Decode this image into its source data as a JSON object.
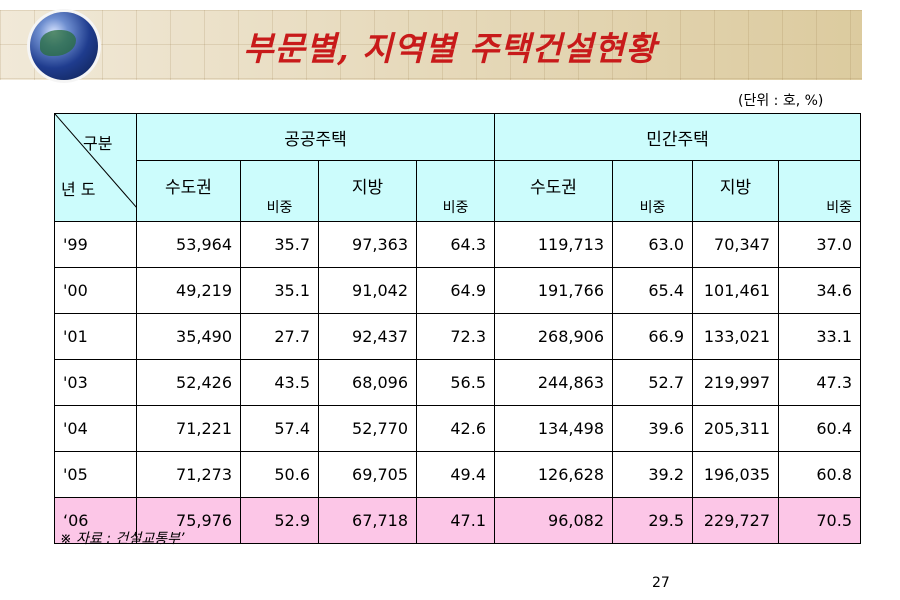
{
  "title": "부문별, 지역별 주택건설현황",
  "unit": "(단위 : 호, %)",
  "table": {
    "corner_top": "구분",
    "corner_bottom": "년 도",
    "group_public": "공공주택",
    "group_private": "민간주택",
    "sub": {
      "capital": "수도권",
      "share": "비중",
      "local": "지방"
    },
    "rows": [
      {
        "year": "'99",
        "pub_cap": "53,964",
        "pub_cap_share": "35.7",
        "pub_loc": "97,363",
        "pub_loc_share": "64.3",
        "pri_cap": "119,713",
        "pri_cap_share": "63.0",
        "pri_loc": "70,347",
        "pri_loc_share": "37.0"
      },
      {
        "year": "'00",
        "pub_cap": "49,219",
        "pub_cap_share": "35.1",
        "pub_loc": "91,042",
        "pub_loc_share": "64.9",
        "pri_cap": "191,766",
        "pri_cap_share": "65.4",
        "pri_loc": "101,461",
        "pri_loc_share": "34.6"
      },
      {
        "year": "'01",
        "pub_cap": "35,490",
        "pub_cap_share": "27.7",
        "pub_loc": "92,437",
        "pub_loc_share": "72.3",
        "pri_cap": "268,906",
        "pri_cap_share": "66.9",
        "pri_loc": "133,021",
        "pri_loc_share": "33.1"
      },
      {
        "year": "'03",
        "pub_cap": "52,426",
        "pub_cap_share": "43.5",
        "pub_loc": "68,096",
        "pub_loc_share": "56.5",
        "pri_cap": "244,863",
        "pri_cap_share": "52.7",
        "pri_loc": "219,997",
        "pri_loc_share": "47.3"
      },
      {
        "year": "'04",
        "pub_cap": "71,221",
        "pub_cap_share": "57.4",
        "pub_loc": "52,770",
        "pub_loc_share": "42.6",
        "pri_cap": "134,498",
        "pri_cap_share": "39.6",
        "pri_loc": "205,311",
        "pri_loc_share": "60.4"
      },
      {
        "year": "'05",
        "pub_cap": "71,273",
        "pub_cap_share": "50.6",
        "pub_loc": "69,705",
        "pub_loc_share": "49.4",
        "pri_cap": "126,628",
        "pri_cap_share": "39.2",
        "pri_loc": "196,035",
        "pri_loc_share": "60.8"
      },
      {
        "year": "‘06",
        "pub_cap": "75,976",
        "pub_cap_share": "52.9",
        "pub_loc": "67,718",
        "pub_loc_share": "47.1",
        "pri_cap": "96,082",
        "pri_cap_share": "29.5",
        "pri_loc": "229,727",
        "pri_loc_share": "70.5"
      }
    ]
  },
  "source": "※ 자료 : 건설교통부’",
  "page_number": "27",
  "colors": {
    "title": "#c81a1a",
    "header_bg": "#ccfcfc",
    "highlight_row_bg": "#fcc6e7"
  }
}
